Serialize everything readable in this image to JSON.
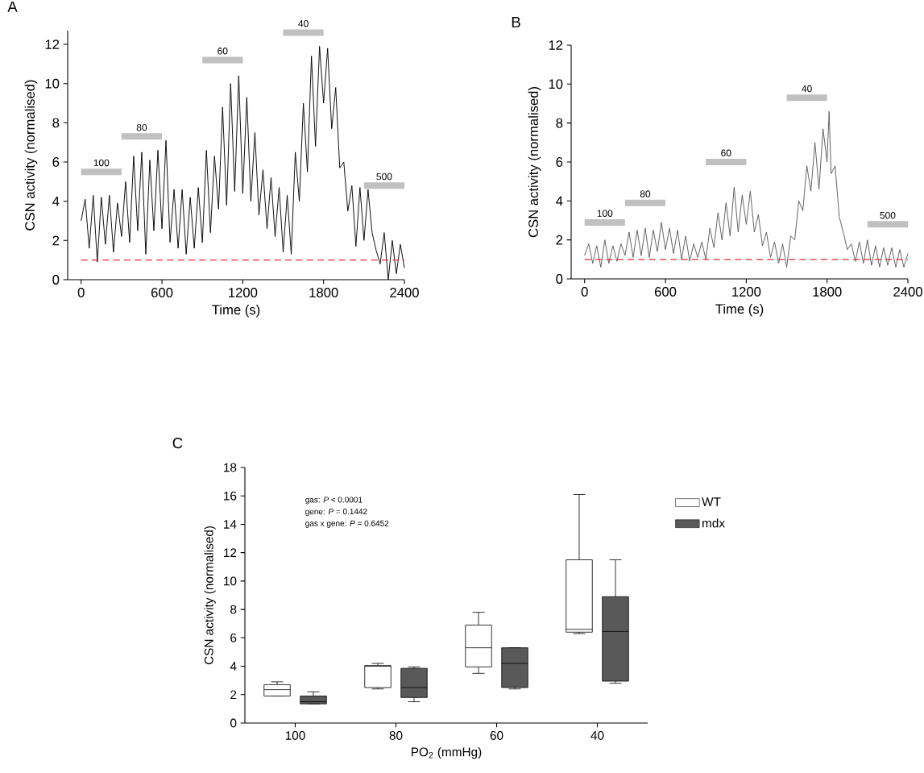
{
  "chart_data": [
    {
      "type": "line",
      "title": "A",
      "xlabel": "Time (s)",
      "ylabel": "CSN activity (normalised)",
      "series": [
        {
          "color": "#000000",
          "x": [
            0,
            30,
            60,
            90,
            120,
            150,
            180,
            210,
            240,
            270,
            300,
            330,
            360,
            390,
            420,
            450,
            480,
            510,
            540,
            570,
            600,
            630,
            660,
            690,
            720,
            750,
            780,
            810,
            840,
            870,
            900,
            930,
            960,
            990,
            1020,
            1050,
            1080,
            1110,
            1140,
            1170,
            1200,
            1230,
            1260,
            1290,
            1320,
            1350,
            1380,
            1410,
            1440,
            1470,
            1500,
            1530,
            1560,
            1590,
            1620,
            1650,
            1680,
            1710,
            1740,
            1770,
            1800,
            1830,
            1860,
            1890,
            1920,
            1950,
            1980,
            2010,
            2040,
            2070,
            2100,
            2130,
            2160,
            2190,
            2220,
            2250,
            2280,
            2310,
            2340,
            2370,
            2400
          ],
          "values": [
            3.0,
            4.1,
            1.6,
            4.3,
            0.9,
            4.2,
            1.8,
            4.3,
            1.4,
            3.9,
            2.2,
            5.0,
            1.9,
            6.3,
            2.5,
            6.5,
            1.3,
            6.1,
            2.5,
            6.6,
            2.6,
            7.1,
            1.9,
            4.6,
            1.6,
            4.6,
            1.3,
            4.2,
            1.6,
            4.7,
            1.9,
            6.6,
            2.4,
            6.3,
            3.6,
            8.8,
            3.8,
            10.0,
            4.5,
            10.4,
            4.4,
            9.3,
            4.0,
            7.5,
            3.3,
            5.6,
            2.6,
            5.2,
            2.2,
            4.7,
            1.4,
            4.3,
            1.3,
            6.5,
            4.0,
            9.0,
            5.5,
            11.4,
            6.8,
            11.9,
            9.0,
            11.8,
            7.7,
            9.8,
            5.7,
            6.0,
            3.5,
            4.8,
            1.7,
            4.7,
            2.0,
            4.6,
            2.4,
            1.5,
            0.8,
            2.4,
            0.0,
            2.0,
            0.3,
            1.8,
            0.6
          ]
        },
        {
          "color": "#c0c0c0",
          "x": [
            0,
            300,
            null,
            300,
            600,
            null,
            900,
            1200,
            null,
            1500,
            1800,
            null,
            2100,
            2400
          ],
          "values": [
            5.5,
            5.5,
            null,
            7.3,
            7.3,
            null,
            11.2,
            11.2,
            null,
            12.6,
            12.6,
            null,
            4.8,
            4.8
          ]
        }
      ],
      "xlim": [
        -100,
        2400
      ],
      "xticks": [
        0,
        600,
        1200,
        1800,
        2400
      ],
      "ylim": [
        0,
        12.7
      ],
      "yticks": [
        0,
        2,
        4,
        6,
        8,
        10,
        12
      ],
      "ref_lines": [
        {
          "axis": "y",
          "value": 1,
          "color": "#e8262b",
          "line_style": "dashed"
        }
      ],
      "annotations": [
        {
          "text": "100",
          "x": 150,
          "y": 5.5
        },
        {
          "text": "80",
          "x": 450,
          "y": 7.3
        },
        {
          "text": "60",
          "x": 1050,
          "y": 11.2
        },
        {
          "text": "40",
          "x": 1650,
          "y": 12.6
        },
        {
          "text": "500",
          "x": 2250,
          "y": 4.8
        }
      ]
    },
    {
      "type": "line",
      "title": "B",
      "xlabel": "Time (s)",
      "ylabel": "CSN activity (normalised)",
      "series": [
        {
          "color": "#5a5a5a",
          "x": [
            0,
            30,
            60,
            90,
            120,
            150,
            180,
            210,
            240,
            270,
            300,
            330,
            360,
            390,
            420,
            450,
            480,
            510,
            540,
            570,
            600,
            630,
            660,
            690,
            720,
            750,
            780,
            810,
            840,
            870,
            900,
            930,
            960,
            990,
            1020,
            1050,
            1080,
            1110,
            1140,
            1170,
            1200,
            1230,
            1260,
            1290,
            1320,
            1350,
            1380,
            1410,
            1440,
            1470,
            1500,
            1530,
            1560,
            1590,
            1620,
            1650,
            1680,
            1710,
            1740,
            1770,
            1800,
            1815,
            1830,
            1860,
            1890,
            1920,
            1950,
            1980,
            2010,
            2040,
            2070,
            2100,
            2130,
            2160,
            2190,
            2220,
            2250,
            2280,
            2310,
            2340,
            2370,
            2400
          ],
          "values": [
            1.2,
            1.8,
            0.8,
            1.7,
            0.6,
            2.0,
            0.8,
            1.7,
            0.9,
            1.8,
            1.2,
            2.4,
            1.1,
            2.5,
            1.2,
            2.6,
            1.1,
            2.5,
            1.4,
            2.9,
            1.5,
            2.6,
            1.3,
            2.5,
            1.0,
            2.2,
            0.9,
            1.8,
            1.1,
            1.9,
            1.0,
            2.6,
            1.6,
            3.4,
            2.0,
            3.9,
            2.2,
            4.7,
            2.4,
            4.3,
            2.8,
            4.5,
            2.4,
            3.3,
            1.7,
            2.4,
            1.1,
            1.9,
            0.8,
            1.8,
            0.6,
            2.2,
            2.0,
            4.0,
            3.5,
            5.8,
            4.5,
            7.0,
            4.6,
            7.7,
            6.0,
            8.6,
            5.4,
            5.8,
            3.2,
            2.4,
            1.5,
            1.8,
            0.9,
            1.9,
            0.8,
            2.0,
            0.7,
            1.7,
            0.6,
            1.6,
            0.7,
            1.6,
            0.6,
            1.5,
            0.6,
            1.3
          ]
        },
        {
          "color": "#c0c0c0",
          "x": [
            0,
            300,
            null,
            300,
            600,
            null,
            900,
            1200,
            null,
            1500,
            1800,
            null,
            2100,
            2400
          ],
          "values": [
            2.9,
            2.9,
            null,
            3.9,
            3.9,
            null,
            6.0,
            6.0,
            null,
            9.3,
            9.3,
            null,
            2.8,
            2.8
          ]
        }
      ],
      "xlim": [
        -100,
        2400
      ],
      "xticks": [
        0,
        600,
        1200,
        1800,
        2400
      ],
      "ylim": [
        0,
        12
      ],
      "yticks": [
        0,
        2,
        4,
        6,
        8,
        10,
        12
      ],
      "ref_lines": [
        {
          "axis": "y",
          "value": 1,
          "color": "#e8262b",
          "line_style": "dashed"
        }
      ],
      "annotations": [
        {
          "text": "100",
          "x": 150,
          "y": 2.9
        },
        {
          "text": "80",
          "x": 450,
          "y": 3.9
        },
        {
          "text": "60",
          "x": 1050,
          "y": 6.0
        },
        {
          "text": "40",
          "x": 1650,
          "y": 9.3
        },
        {
          "text": "500",
          "x": 2250,
          "y": 2.8
        }
      ]
    },
    {
      "type": "box",
      "title": "C",
      "xlabel": "PO$_{2}$ (mmHg)",
      "ylabel": "CSN activity (normalised)",
      "categories": [
        "100",
        "80",
        "60",
        "40"
      ],
      "ylim": [
        0,
        18
      ],
      "yticks": [
        0,
        2,
        4,
        6,
        8,
        10,
        12,
        14,
        16,
        18
      ],
      "legend": "right",
      "annotations": [
        "gas: *P* < 0.0001",
        "gene: *P* = 0.1442",
        "gas x gene: *P* = 0.6452"
      ],
      "series": [
        {
          "name": "WT",
          "color": "#ffffff",
          "boxes": [
            {
              "low": 1.9,
              "q1": 1.9,
              "median": 2.35,
              "q3": 2.7,
              "high": 2.9
            },
            {
              "low": 2.4,
              "q1": 2.5,
              "median": 4.0,
              "q3": 4.05,
              "high": 4.2
            },
            {
              "low": 3.5,
              "q1": 3.95,
              "median": 5.3,
              "q3": 6.9,
              "high": 7.8
            },
            {
              "low": 6.3,
              "q1": 6.4,
              "median": 6.6,
              "q3": 11.5,
              "high": 16.1
            }
          ]
        },
        {
          "name": "mdx",
          "color": "#595959",
          "boxes": [
            {
              "low": 1.35,
              "q1": 1.35,
              "median": 1.5,
              "q3": 1.9,
              "high": 2.2
            },
            {
              "low": 1.5,
              "q1": 1.8,
              "median": 2.5,
              "q3": 3.85,
              "high": 3.95
            },
            {
              "low": 2.4,
              "q1": 2.5,
              "median": 4.2,
              "q3": 5.3,
              "high": 5.3
            },
            {
              "low": 2.8,
              "q1": 2.95,
              "median": 6.45,
              "q3": 8.9,
              "high": 11.5
            }
          ]
        }
      ]
    }
  ]
}
